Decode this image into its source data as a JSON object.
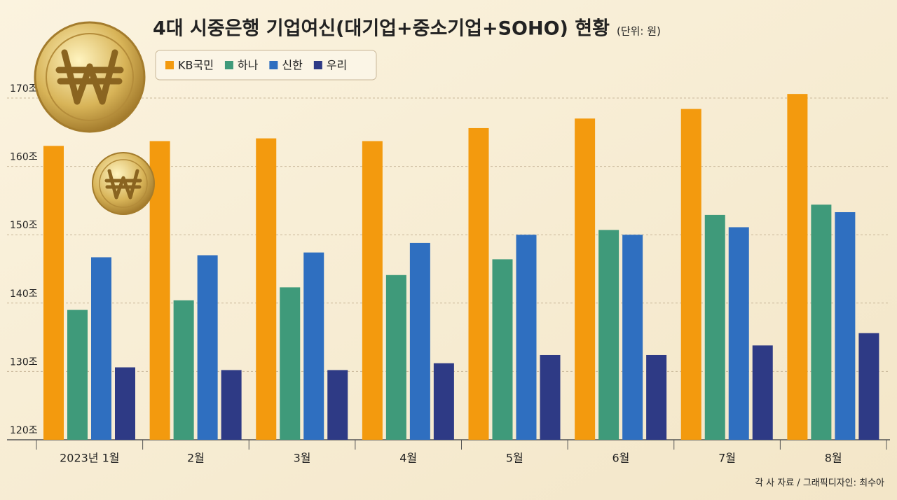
{
  "chart_data": {
    "type": "bar",
    "title": "4대 시중은행 기업여신(대기업+중소기업+SOHO) 현황",
    "unit": "(단위: 원)",
    "source": "각 사 자료 / 그래픽디자인: 최수아",
    "categories": [
      "2023년 1월",
      "2월",
      "3월",
      "4월",
      "5월",
      "6월",
      "7월",
      "8월"
    ],
    "series": [
      {
        "name": "KB국민",
        "color": "#f39a0e",
        "values": [
          163.0,
          163.7,
          164.1,
          163.7,
          165.6,
          167.0,
          168.4,
          170.6
        ]
      },
      {
        "name": "하나",
        "color": "#3f9a7a",
        "values": [
          139.0,
          140.4,
          142.3,
          144.1,
          146.4,
          150.7,
          152.9,
          154.4
        ]
      },
      {
        "name": "신한",
        "color": "#2f6fc0",
        "values": [
          146.7,
          147.0,
          147.4,
          148.8,
          150.0,
          150.0,
          151.1,
          153.3
        ]
      },
      {
        "name": "우리",
        "color": "#2e3a85",
        "values": [
          130.6,
          130.2,
          130.2,
          131.2,
          132.4,
          132.4,
          133.8,
          135.6
        ]
      }
    ],
    "ylim": [
      120,
      180
    ],
    "yticks": [
      {
        "value": 120,
        "label": "120조"
      },
      {
        "value": 130,
        "label": "130조"
      },
      {
        "value": 140,
        "label": "140조"
      },
      {
        "value": 150,
        "label": "150조"
      },
      {
        "value": 160,
        "label": "160조"
      },
      {
        "value": 170,
        "label": "170조"
      }
    ],
    "grid": true
  }
}
